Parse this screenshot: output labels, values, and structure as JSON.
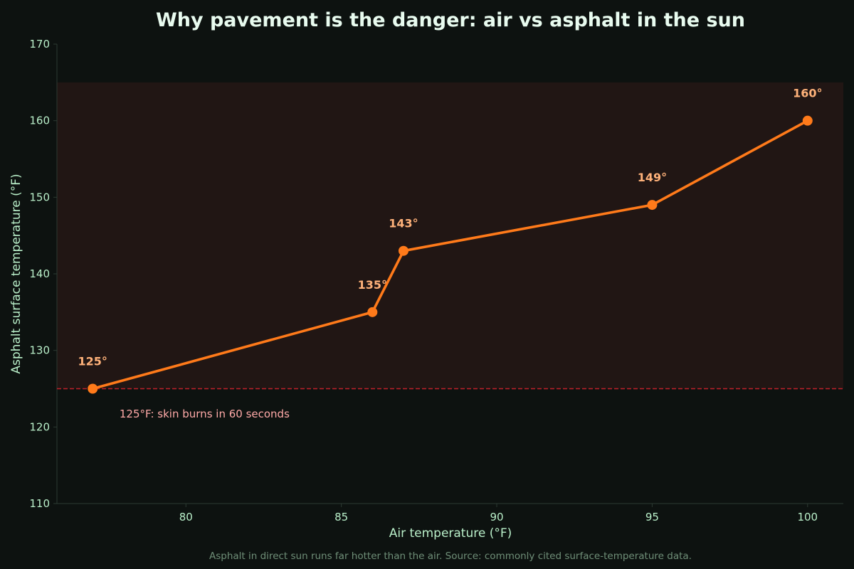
{
  "chart_data": {
    "type": "line",
    "title": "Why pavement is the danger: air vs asphalt in the sun",
    "xlabel": "Air temperature (°F)",
    "ylabel": "Asphalt surface temperature (°F)",
    "caption": "Asphalt in direct sun runs far hotter than the air. Source: commonly cited surface-temperature data.",
    "x": [
      77,
      86,
      87,
      95,
      100
    ],
    "y": [
      125,
      135,
      143,
      149,
      160
    ],
    "point_labels": [
      "125°",
      "135°",
      "143°",
      "149°",
      "160°"
    ],
    "xlim": [
      75.85,
      101.15
    ],
    "ylim": [
      110,
      170
    ],
    "xticks": [
      80,
      85,
      90,
      95,
      100
    ],
    "yticks": [
      110,
      120,
      130,
      140,
      150,
      160,
      170
    ],
    "danger_band": [
      125,
      165
    ],
    "threshold": {
      "value": 125,
      "label": "125°F: skin burns in 60 seconds",
      "label_x": 78,
      "label_y": 121.5
    },
    "grid": false,
    "legend": "none",
    "colors": {
      "background": "#0d1210",
      "line": "#ff7a1a",
      "point_label": "#ffb27a",
      "band": "#211614",
      "threshold": "#c0202a",
      "threshold_label": "#ffaaa8",
      "title": "#e8fbef",
      "axis_text": "#b9efc9",
      "caption": "#6f8f78",
      "spine": "#2c3a32"
    }
  }
}
